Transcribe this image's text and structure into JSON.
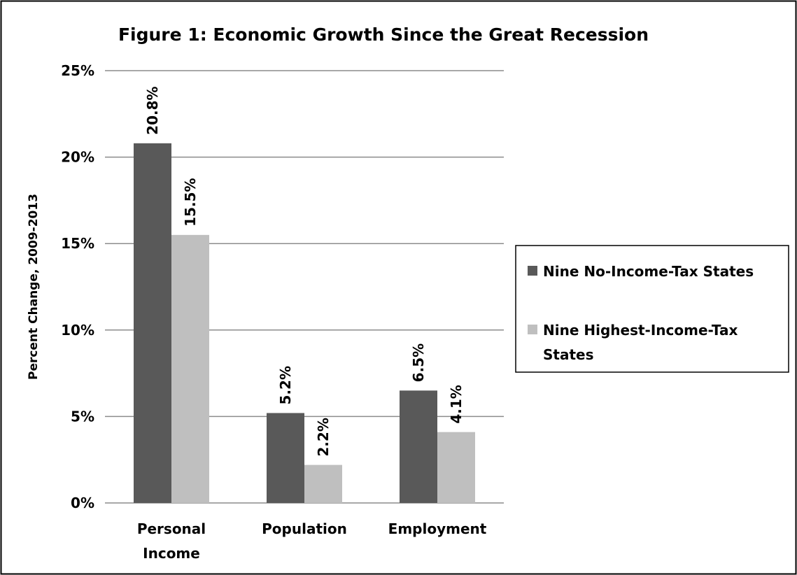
{
  "chart_data": {
    "type": "bar",
    "title": "Figure 1: Economic Growth Since the Great Recession",
    "xlabel": "",
    "ylabel": "Percent Change, 2009-2013",
    "categories": [
      [
        "Personal",
        "Income"
      ],
      [
        "Population"
      ],
      [
        "Employment"
      ]
    ],
    "series": [
      {
        "name": "Nine No-Income-Tax States",
        "values": [
          20.8,
          5.2,
          6.5
        ],
        "labels": [
          "20.8%",
          "5.2%",
          "6.5%"
        ],
        "color": "#595959"
      },
      {
        "name_lines": [
          "Nine Highest-Income-Tax",
          "States"
        ],
        "values": [
          15.5,
          2.2,
          4.1
        ],
        "labels": [
          "15.5%",
          "2.2%",
          "4.1%"
        ],
        "color": "#bfbfbf"
      }
    ],
    "ylim": [
      0,
      25
    ],
    "yticks": [
      0,
      5,
      10,
      15,
      20,
      25
    ],
    "ytick_labels": [
      "0%",
      "5%",
      "10%",
      "15%",
      "20%",
      "25%"
    ],
    "grid": true,
    "legend_position": "right",
    "gridline_color": "#8c8c8c",
    "frame_color": "#000000"
  }
}
